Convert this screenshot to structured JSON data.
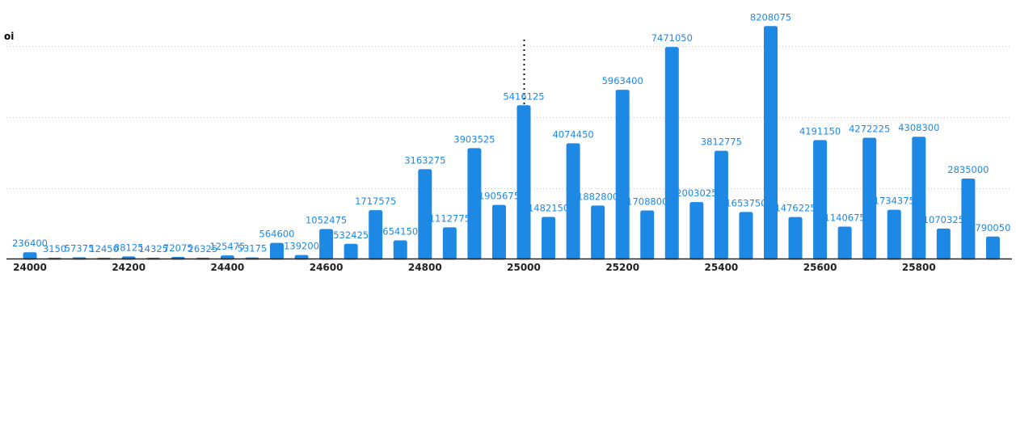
{
  "colors": {
    "bar": "#1e88e5",
    "bar_label": "#1e88e5",
    "axis": "#222222",
    "grid": "#cccccc",
    "marker": "#111111",
    "text": "#222222"
  },
  "chart_data": {
    "type": "bar",
    "ylabel": "oi",
    "xlabel": "",
    "title": "",
    "categories": [
      24000,
      24050,
      24100,
      24150,
      24200,
      24250,
      24300,
      24350,
      24400,
      24450,
      24500,
      24550,
      24600,
      24650,
      24700,
      24750,
      24800,
      24850,
      24900,
      24950,
      25000,
      25050,
      25100,
      25150,
      25200,
      25250,
      25300,
      25350,
      25400,
      25450,
      25500,
      25550,
      25600,
      25650,
      25700,
      25750,
      25800,
      25850,
      25900,
      25950
    ],
    "values": [
      236400,
      3150,
      57375,
      12450,
      88125,
      14325,
      72075,
      26325,
      125475,
      53175,
      564600,
      139200,
      1052475,
      532425,
      1717575,
      654150,
      3163275,
      1112775,
      3903525,
      1905675,
      5416125,
      1482150,
      4074450,
      1882800,
      5963400,
      1708800,
      7471050,
      2003025,
      3812775,
      1653750,
      8208075,
      1476225,
      4191150,
      1140675,
      4272225,
      1734375,
      4308300,
      1070325,
      2835000,
      790050
    ],
    "value_labels": [
      "236400",
      "3150",
      "57375",
      "12450",
      "88125",
      "14325",
      "72075",
      "26325",
      "125475",
      "53175",
      "564600",
      "139200",
      "1052475",
      "532425",
      "1717575",
      "654150",
      "3163275",
      "1112775",
      "3903525",
      "1905675",
      "5416125",
      "1482150",
      "4074450",
      "1882800",
      "5963400",
      "1708800",
      "7471050",
      "2003025",
      "3812775",
      "1653750",
      "8208075",
      "1476225",
      "4191150",
      "1140675",
      "4272225",
      "1734375",
      "4308300",
      "1070325",
      "2835000",
      "790050"
    ],
    "x_ticks": [
      "24000",
      "24200",
      "24400",
      "24600",
      "24800",
      "25000",
      "25200",
      "25400",
      "25600",
      "25800"
    ],
    "ylim": [
      0,
      8500000
    ],
    "gridlines": [
      2500000,
      5000000,
      7500000
    ],
    "marker_x": 25000,
    "grid": true,
    "legend": "none"
  }
}
